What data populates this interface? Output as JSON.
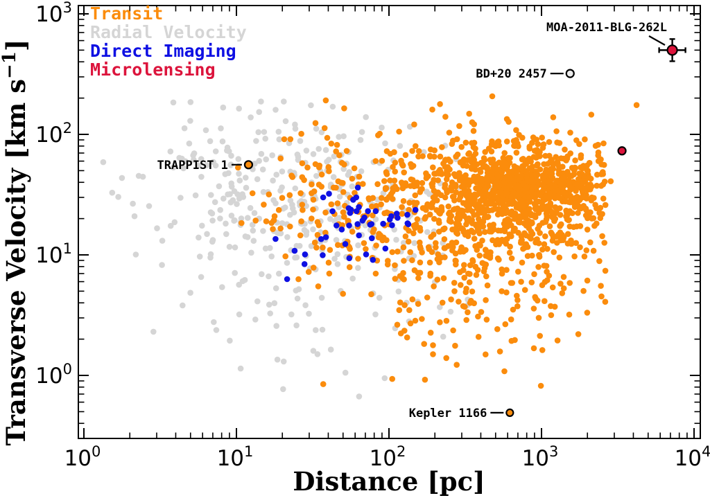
{
  "figure": {
    "background": "#ffffff",
    "frame_color": "#000000"
  },
  "chart_data": {
    "type": "scatter",
    "title": "",
    "xlabel": "Distance [pc]",
    "ylabel_parts": {
      "pre": "Transverse Velocity [km s",
      "sup": "−1",
      "post": "]"
    },
    "xscale": "log",
    "yscale": "log",
    "xlim": [
      0.92,
      11000
    ],
    "ylim": [
      0.3,
      1170
    ],
    "x_tick_base": "10",
    "x_tick_exponents": [
      "0",
      "1",
      "2",
      "3",
      "4"
    ],
    "y_tick_base": "10",
    "y_tick_exponents": [
      "0",
      "1",
      "2",
      "3"
    ],
    "grid": false,
    "point_radius": 4.3,
    "legend": {
      "position": "top-left",
      "entries": [
        {
          "method": "transit",
          "label": "Transit",
          "color": "#FB8C0C"
        },
        {
          "method": "radial-velocity",
          "label": "Radial Velocity",
          "color": "#D5D5D5"
        },
        {
          "method": "direct-imaging",
          "label": "Direct Imaging",
          "color": "#0F10E3"
        },
        {
          "method": "microlensing",
          "label": "Microlensing",
          "color": "#DC143C"
        }
      ]
    },
    "labeled_points": [
      {
        "label": "MOA-2011-BLG-262L",
        "method": "microlensing",
        "distance_pc": 7200,
        "velocity_kms": 500,
        "color": "#DC143C",
        "r": 7,
        "edge": "#000000",
        "error_bar": {
          "dx": 19,
          "dy": 16
        },
        "ann": {
          "type": "diagonal",
          "text_end": [
            962,
            45
          ],
          "line": [
            936,
            52,
            959,
            65
          ]
        }
      },
      {
        "label": "BD+20 2457",
        "method": "radial-velocity",
        "distance_pc": 1540,
        "velocity_kms": 320,
        "color": "#ECECEC",
        "r": 5.5,
        "edge": "#000000",
        "ann": {
          "type": "dash-left",
          "dash_len": 19
        }
      },
      {
        "label": "TRAPPIST 1",
        "method": "transit",
        "distance_pc": 12,
        "velocity_kms": 56,
        "color": "#FB8C0C",
        "r": 5.5,
        "edge": "#000000",
        "ann": {
          "type": "dash-left",
          "dash_len": 15
        }
      },
      {
        "label": "Kepler 1166",
        "method": "transit",
        "distance_pc": 620,
        "velocity_kms": 0.49,
        "color": "#FB8C0C",
        "r": 5,
        "edge": "#000000",
        "ann": {
          "type": "dash-left",
          "dash_len": 19
        }
      },
      {
        "label": "",
        "method": "microlensing",
        "distance_pc": 3370,
        "velocity_kms": 73,
        "color": "#DC143C",
        "r": 5.5,
        "edge": "#000000"
      }
    ],
    "outlier_points": [
      {
        "method": "transit",
        "color": "#FB8C0C",
        "distance_pc": 4200,
        "velocity_kms": 175
      }
    ],
    "point_clusters": [
      {
        "method": "radial-velocity",
        "color": "#D5D5D5",
        "n": 300,
        "seed": 11,
        "log_x_mean": 1.32,
        "log_x_sd": 0.48,
        "log_y_mean": 1.52,
        "log_y_sd": 0.33,
        "log_x_range": [
          0.08,
          2.75
        ],
        "log_y_range": [
          -0.25,
          2.33
        ]
      },
      {
        "method": "radial-velocity",
        "color": "#D5D5D5",
        "n": 85,
        "seed": 12,
        "log_x_mean": 1.55,
        "log_x_sd": 0.5,
        "log_y_mean": 0.8,
        "log_y_sd": 0.4,
        "log_x_range": [
          0.25,
          2.7
        ],
        "log_y_range": [
          -0.4,
          1.35
        ]
      },
      {
        "method": "transit",
        "color": "#FB8C0C",
        "n": 860,
        "seed": 21,
        "log_x_mean": 2.85,
        "log_x_sd": 0.33,
        "log_y_mean": 1.55,
        "log_y_sd": 0.21,
        "log_x_range": [
          1.85,
          3.42
        ],
        "log_y_range": [
          0.85,
          2.32
        ]
      },
      {
        "method": "transit",
        "color": "#FB8C0C",
        "n": 450,
        "seed": 22,
        "log_x_mean": 2.55,
        "log_x_sd": 0.55,
        "log_y_mean": 1.38,
        "log_y_sd": 0.35,
        "log_x_range": [
          1.0,
          3.5
        ],
        "log_y_range": [
          0.15,
          2.3
        ]
      },
      {
        "method": "transit",
        "color": "#FB8C0C",
        "n": 160,
        "seed": 23,
        "log_x_mean": 2.6,
        "log_x_sd": 0.4,
        "log_y_mean": 0.78,
        "log_y_sd": 0.38,
        "log_x_range": [
          1.4,
          3.42
        ],
        "log_y_range": [
          -0.1,
          1.45
        ]
      },
      {
        "method": "transit",
        "color": "#FB8C0C",
        "n": 90,
        "seed": 24,
        "log_x_mean": 1.72,
        "log_x_sd": 0.38,
        "log_y_mean": 1.35,
        "log_y_sd": 0.35,
        "log_x_range": [
          0.95,
          2.3
        ],
        "log_y_range": [
          0.2,
          2.1
        ]
      },
      {
        "method": "direct-imaging",
        "color": "#0F10E3",
        "n": 34,
        "seed": 31,
        "log_x_mean": 1.95,
        "log_x_sd": 0.22,
        "log_y_mean": 1.27,
        "log_y_sd": 0.1,
        "log_x_range": [
          1.3,
          2.3
        ],
        "log_y_range": [
          1.02,
          1.62
        ]
      },
      {
        "method": "direct-imaging",
        "color": "#0F10E3",
        "n": 12,
        "seed": 32,
        "log_x_mean": 1.55,
        "log_x_sd": 0.28,
        "log_y_mean": 1.05,
        "log_y_sd": 0.18,
        "log_x_range": [
          1.1,
          2.2
        ],
        "log_y_range": [
          0.72,
          1.5
        ]
      }
    ]
  }
}
